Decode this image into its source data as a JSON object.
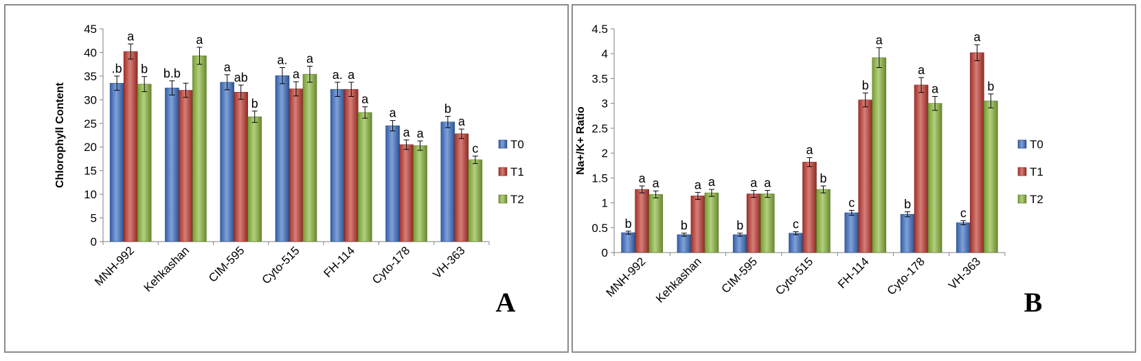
{
  "chart_data": [
    {
      "type": "bar",
      "panel_label": "A",
      "ylabel": "Chlorophyll Content",
      "xlabel": "",
      "ylim": [
        0,
        45
      ],
      "yticks": [
        0,
        5,
        10,
        15,
        20,
        25,
        30,
        35,
        40,
        45
      ],
      "categories": [
        "MNH-992",
        "Kehkashan",
        "CIM-595",
        "Cyto-515",
        "FH-114",
        "Cyto-178",
        "VH-363"
      ],
      "legend_position": "right",
      "grid": false,
      "series": [
        {
          "name": "T0",
          "color": "#3b6fc4",
          "values": [
            33.5,
            32.5,
            33.7,
            35.1,
            32.2,
            24.5,
            25.3
          ],
          "errors": [
            1.5,
            1.5,
            1.6,
            1.7,
            1.5,
            1.1,
            1.2
          ],
          "labels": [
            ".b",
            "b.b",
            "a",
            "a.",
            "a.",
            "a",
            "b"
          ]
        },
        {
          "name": "T1",
          "color": "#c0392f",
          "values": [
            40.2,
            32.0,
            31.6,
            32.3,
            32.2,
            20.5,
            22.8
          ],
          "errors": [
            1.6,
            1.5,
            1.5,
            1.5,
            1.5,
            1.0,
            1.0
          ],
          "labels": [
            "a",
            "",
            "ab",
            "a",
            "a",
            "a",
            "a"
          ]
        },
        {
          "name": "T2",
          "color": "#8ab73a",
          "values": [
            33.3,
            39.3,
            26.4,
            35.4,
            27.3,
            20.3,
            17.3
          ],
          "errors": [
            1.6,
            1.8,
            1.2,
            1.7,
            1.2,
            1.0,
            0.8
          ],
          "labels": [
            "b",
            "a",
            "b",
            "a",
            "a",
            "a",
            "c"
          ]
        }
      ]
    },
    {
      "type": "bar",
      "panel_label": "B",
      "ylabel": "Na+/K+ Ratio",
      "xlabel": "",
      "ylim": [
        0,
        4.5
      ],
      "yticks": [
        "0",
        "0.5",
        "1",
        "1.5",
        "2",
        "2.5",
        "3",
        "3.5",
        "4",
        "4.5"
      ],
      "categories": [
        "MNH-992",
        "Kehkashan",
        "CIM-595",
        "Cyto-515",
        "FH-114",
        "Cyto-178",
        "VH-363"
      ],
      "legend_position": "right",
      "grid": false,
      "series": [
        {
          "name": "T0",
          "color": "#3b6fc4",
          "values": [
            0.4,
            0.36,
            0.36,
            0.39,
            0.8,
            0.77,
            0.6
          ],
          "errors": [
            0.03,
            0.03,
            0.03,
            0.03,
            0.05,
            0.05,
            0.04
          ],
          "labels": [
            "b",
            "b",
            "b",
            "c",
            "c",
            "b",
            "c"
          ]
        },
        {
          "name": "T1",
          "color": "#c0392f",
          "values": [
            1.27,
            1.14,
            1.18,
            1.82,
            3.07,
            3.37,
            4.02
          ],
          "errors": [
            0.07,
            0.07,
            0.07,
            0.09,
            0.14,
            0.15,
            0.16
          ],
          "labels": [
            "a",
            "a",
            "a",
            "a",
            "b",
            "a",
            "a"
          ]
        },
        {
          "name": "T2",
          "color": "#8ab73a",
          "values": [
            1.17,
            1.2,
            1.18,
            1.27,
            3.92,
            3.0,
            3.05
          ],
          "errors": [
            0.07,
            0.07,
            0.07,
            0.07,
            0.2,
            0.14,
            0.14
          ],
          "labels": [
            "a",
            "a",
            "a",
            "b",
            "a",
            "a",
            "b"
          ]
        }
      ]
    }
  ]
}
